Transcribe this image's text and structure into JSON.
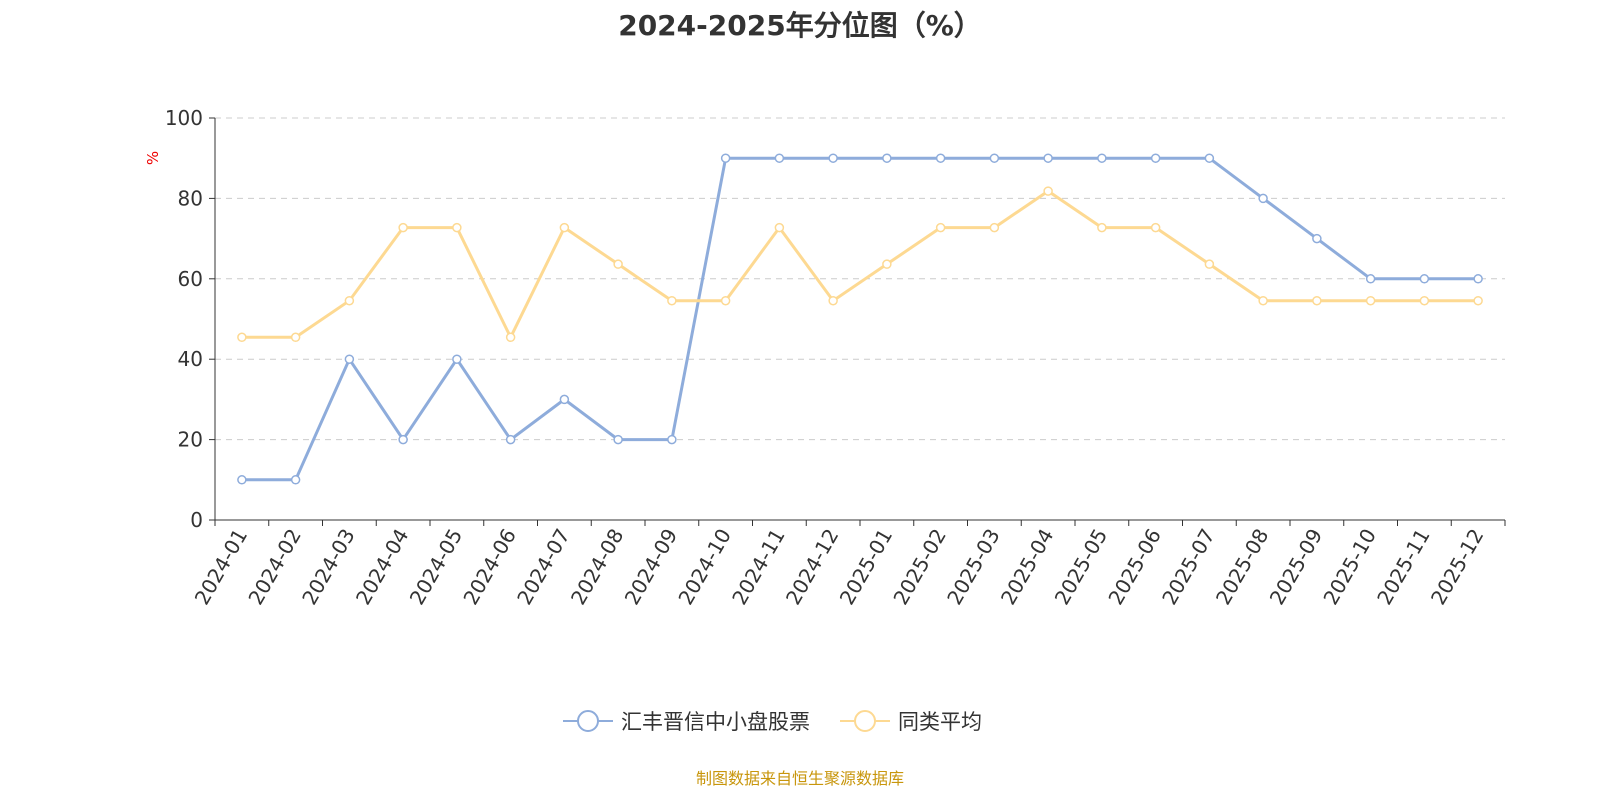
{
  "chart_data": {
    "type": "line",
    "title": "2024-2025年分位图（%）",
    "ylabel": "%",
    "xlabel": "",
    "ylim": [
      0,
      100
    ],
    "yticks": [
      0,
      20,
      40,
      60,
      80,
      100
    ],
    "grid": true,
    "legend_position": "bottom",
    "categories": [
      "2024-01",
      "2024-02",
      "2024-03",
      "2024-04",
      "2024-05",
      "2024-06",
      "2024-07",
      "2024-08",
      "2024-09",
      "2024-10",
      "2024-11",
      "2024-12",
      "2025-01",
      "2025-02",
      "2025-03",
      "2025-04",
      "2025-05",
      "2025-06",
      "2025-07",
      "2025-08",
      "2025-09",
      "2025-10",
      "2025-11",
      "2025-12"
    ],
    "series": [
      {
        "name": "汇丰晋信中小盘股票",
        "color": "#8eacdb",
        "values": [
          10,
          10,
          40,
          20,
          40,
          20,
          30,
          20,
          20,
          90,
          90,
          90,
          90,
          90,
          90,
          90,
          90,
          90,
          90,
          80,
          70,
          60,
          60,
          60
        ]
      },
      {
        "name": "同类平均",
        "color": "#fdd992",
        "values": [
          45.45,
          45.45,
          54.55,
          72.73,
          72.73,
          45.45,
          72.73,
          63.64,
          54.55,
          54.55,
          72.73,
          54.55,
          63.64,
          72.73,
          72.73,
          81.82,
          72.73,
          72.73,
          63.64,
          54.55,
          54.55,
          54.55,
          54.55,
          54.55
        ]
      }
    ]
  },
  "footer": "制图数据来自恒生聚源数据库"
}
